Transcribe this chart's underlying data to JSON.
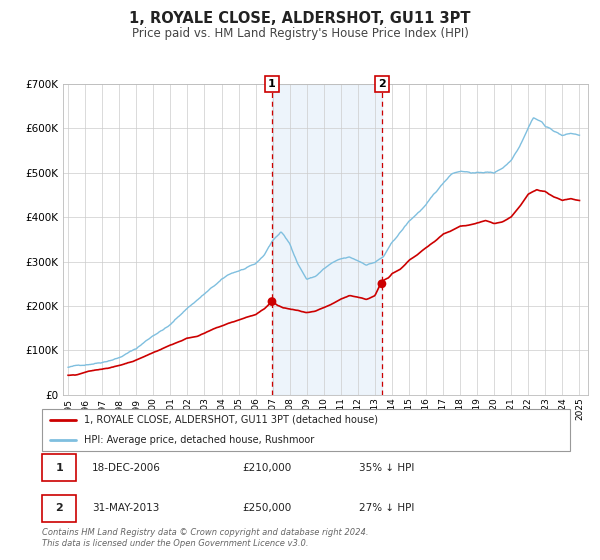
{
  "title": "1, ROYALE CLOSE, ALDERSHOT, GU11 3PT",
  "subtitle": "Price paid vs. HM Land Registry's House Price Index (HPI)",
  "title_fontsize": 10.5,
  "subtitle_fontsize": 8.5,
  "background_color": "#ffffff",
  "plot_bg_color": "#ffffff",
  "grid_color": "#cccccc",
  "shade_color": "#cce0f5",
  "sale1": {
    "date": 2006.96,
    "value": 210000,
    "label": "1"
  },
  "sale2": {
    "date": 2013.41,
    "value": 250000,
    "label": "2"
  },
  "legend_line1": "1, ROYALE CLOSE, ALDERSHOT, GU11 3PT (detached house)",
  "legend_line2": "HPI: Average price, detached house, Rushmoor",
  "table_row1": [
    "1",
    "18-DEC-2006",
    "£210,000",
    "35% ↓ HPI"
  ],
  "table_row2": [
    "2",
    "31-MAY-2013",
    "£250,000",
    "27% ↓ HPI"
  ],
  "footer": "Contains HM Land Registry data © Crown copyright and database right 2024.\nThis data is licensed under the Open Government Licence v3.0.",
  "hpi_color": "#7fbfdf",
  "price_color": "#cc0000",
  "marker_color": "#cc0000",
  "vline_color": "#cc0000",
  "ylim": [
    0,
    700000
  ],
  "yticks": [
    0,
    100000,
    200000,
    300000,
    400000,
    500000,
    600000,
    700000
  ],
  "xlim_start": 1994.7,
  "xlim_end": 2025.5,
  "xtick_years": [
    1995,
    1996,
    1997,
    1998,
    1999,
    2000,
    2001,
    2002,
    2003,
    2004,
    2005,
    2006,
    2007,
    2008,
    2009,
    2010,
    2011,
    2012,
    2013,
    2014,
    2015,
    2016,
    2017,
    2018,
    2019,
    2020,
    2021,
    2022,
    2023,
    2024,
    2025
  ]
}
